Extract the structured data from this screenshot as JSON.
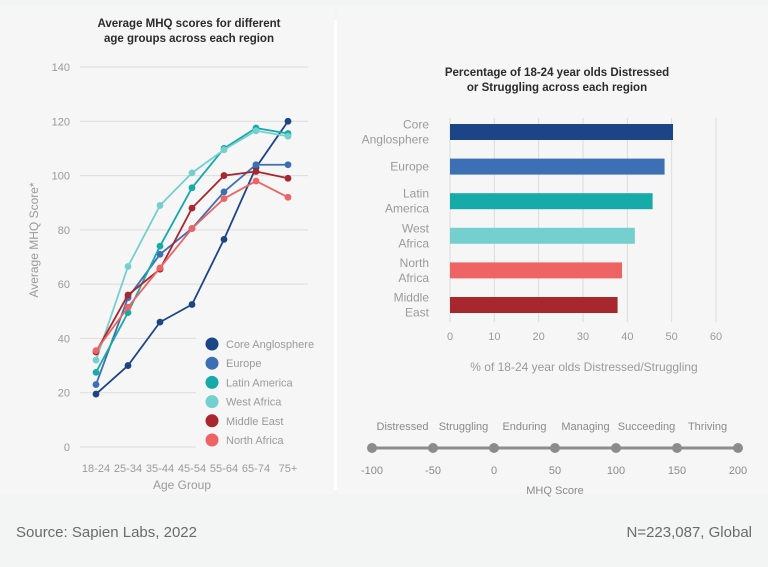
{
  "chart_data": [
    {
      "type": "line",
      "title": [
        "Average MHQ scores for different",
        "age groups across each region"
      ],
      "xlabel": "Age Group",
      "ylabel": "Average MHQ Score*",
      "x": [
        "18-24",
        "25-34",
        "35-44",
        "45-54",
        "55-64",
        "65-74",
        "75+"
      ],
      "ylim": [
        0,
        140
      ],
      "yticks": [
        0,
        20,
        40,
        60,
        80,
        100,
        120,
        140
      ],
      "grid": true,
      "legend_position": "bottom-right",
      "series": [
        {
          "name": "Core Anglosphere",
          "color": "#1c4587",
          "values": [
            19.5,
            30,
            46,
            52.5,
            76.5,
            103,
            120
          ]
        },
        {
          "name": "Europe",
          "color": "#3d6fb5",
          "values": [
            23,
            55,
            71,
            80.5,
            94,
            104,
            104
          ]
        },
        {
          "name": "Latin America",
          "color": "#16aaa8",
          "values": [
            27.5,
            49.5,
            74,
            95.5,
            110,
            117.5,
            115.5
          ]
        },
        {
          "name": "West Africa",
          "color": "#76cfcf",
          "values": [
            32,
            66.5,
            89,
            101,
            109.5,
            116.5,
            114.5
          ]
        },
        {
          "name": "Middle East",
          "color": "#a8262d",
          "values": [
            35,
            56,
            65.5,
            88,
            100,
            101.5,
            99
          ]
        },
        {
          "name": "North Africa",
          "color": "#ee6363",
          "values": [
            35.5,
            51.5,
            66,
            80.5,
            91.5,
            98,
            92
          ]
        }
      ]
    },
    {
      "type": "bar",
      "orientation": "horizontal",
      "title": [
        "Percentage of 18-24 year olds Distressed",
        "or Struggling across each region"
      ],
      "xlabel": "% of 18-24 year olds Distressed/Struggling",
      "ylabel": "",
      "xlim": [
        0,
        60
      ],
      "xticks": [
        0,
        10,
        20,
        30,
        40,
        50,
        60
      ],
      "grid": true,
      "categories": [
        {
          "label": [
            "Core",
            "Anglosphere"
          ],
          "value": 50.3,
          "color": "#1c4587"
        },
        {
          "label": [
            "Europe"
          ],
          "value": 48.4,
          "color": "#3d6fb5"
        },
        {
          "label": [
            "Latin",
            "America"
          ],
          "value": 45.7,
          "color": "#16aaa8"
        },
        {
          "label": [
            "West",
            "Africa"
          ],
          "value": 41.7,
          "color": "#76cfcf"
        },
        {
          "label": [
            "North",
            "Africa"
          ],
          "value": 38.8,
          "color": "#ee6363"
        },
        {
          "label": [
            "Middle",
            "East"
          ],
          "value": 37.8,
          "color": "#a8262d"
        }
      ]
    }
  ],
  "mhq_scale": {
    "title": "MHQ Score",
    "ticks": [
      -100,
      -50,
      0,
      50,
      100,
      150,
      200
    ],
    "categories": [
      "Distressed",
      "Struggling",
      "Enduring",
      "Managing",
      "Succeeding",
      "Thriving"
    ],
    "color": "#8c8c8c"
  },
  "footer": {
    "source": "Source: Sapien Labs, 2022",
    "sample": "N=223,087, Global"
  }
}
